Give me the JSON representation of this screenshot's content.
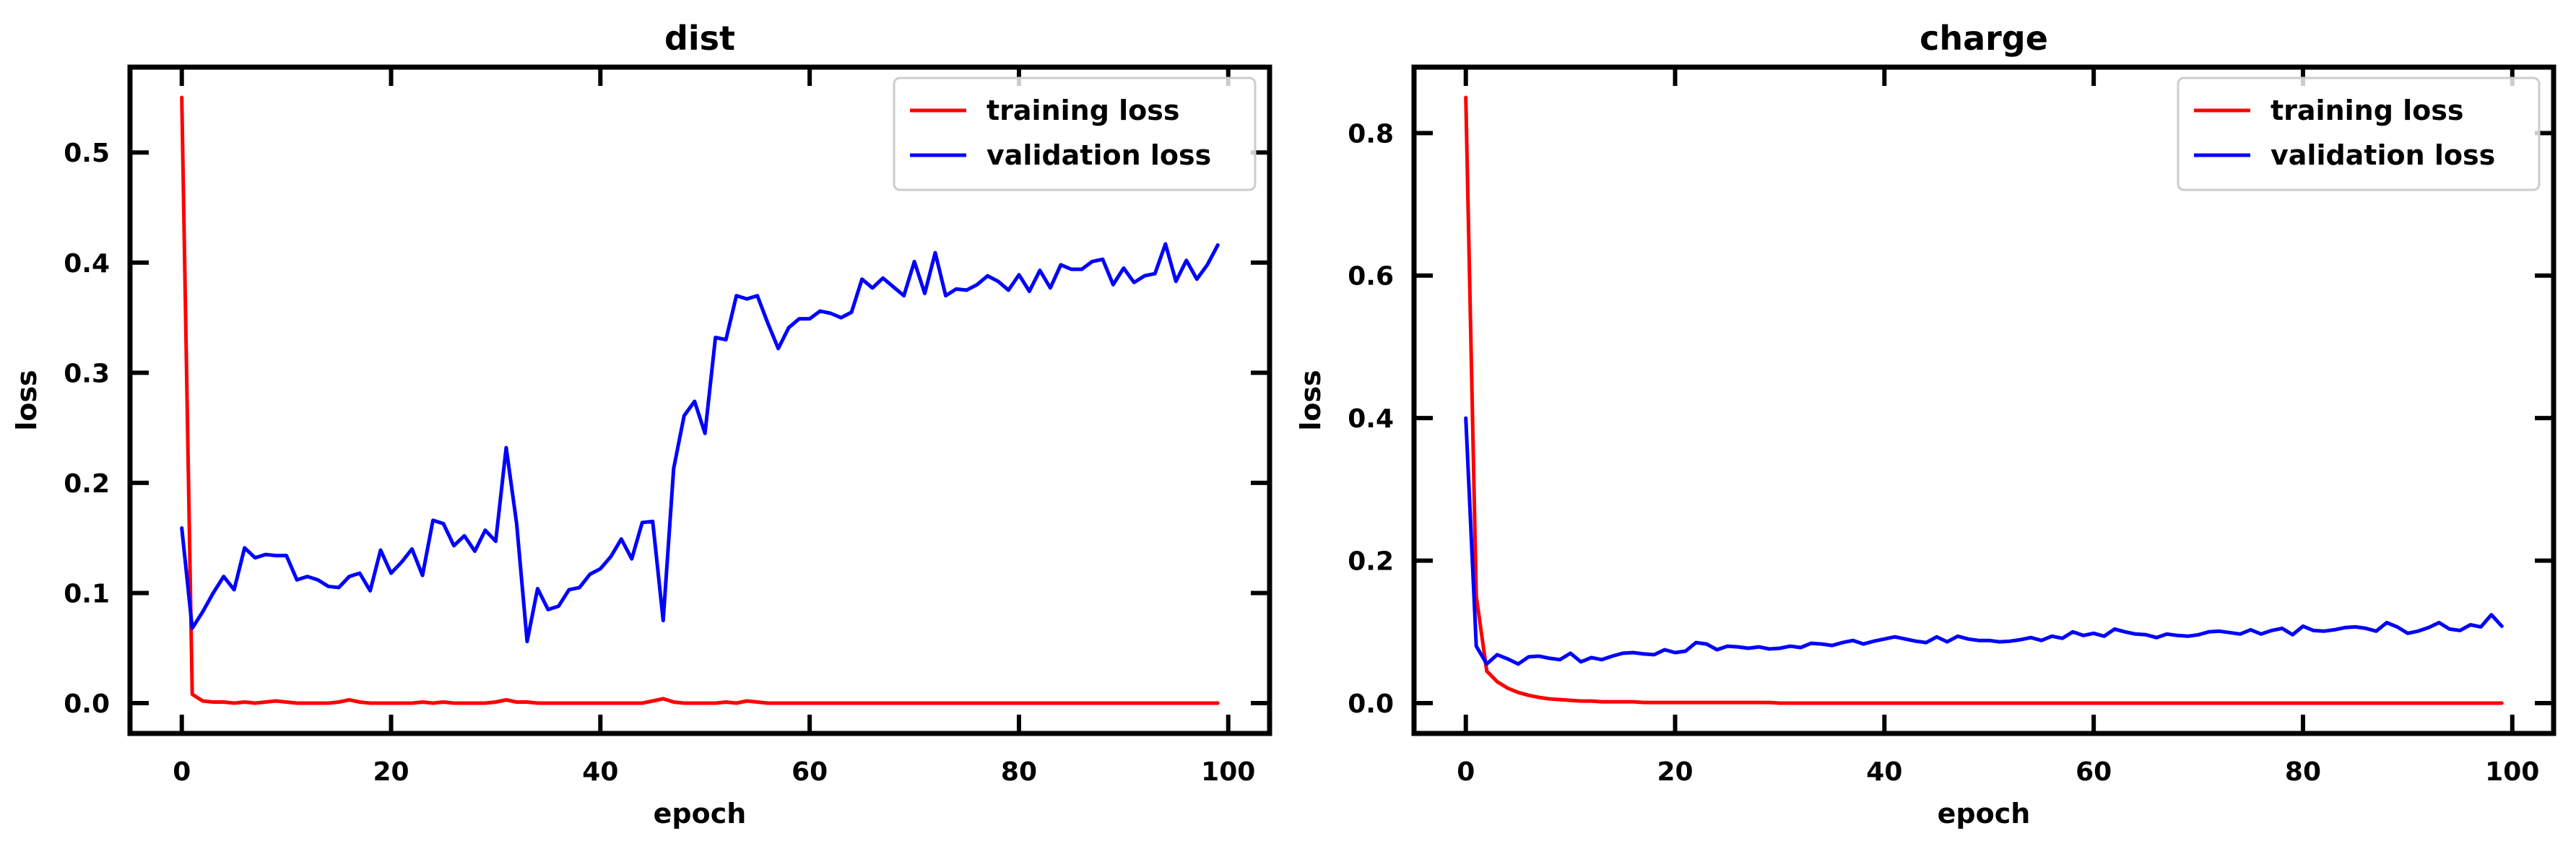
{
  "chart_data": [
    {
      "type": "line",
      "title": "dist",
      "xlabel": "epoch",
      "ylabel": "loss",
      "xlim": [
        -4.95,
        103.95
      ],
      "ylim": [
        -0.0275,
        0.5775
      ],
      "xticks": [
        0,
        20,
        40,
        60,
        80,
        100
      ],
      "xtick_labels": [
        "0",
        "20",
        "40",
        "60",
        "80",
        "100"
      ],
      "yticks": [
        0.0,
        0.1,
        0.2,
        0.3,
        0.4,
        0.5
      ],
      "ytick_labels": [
        "0.0",
        "0.1",
        "0.2",
        "0.3",
        "0.4",
        "0.5"
      ],
      "legend_position": "top-right",
      "x": "range:0-99",
      "series": [
        {
          "name": "training loss",
          "color": "#ff0000",
          "values": [
            0.55,
            0.008,
            0.002,
            0.001,
            0.001,
            0.0,
            0.001,
            0.0,
            0.001,
            0.002,
            0.001,
            0.0,
            0.0,
            0.0,
            0.0,
            0.001,
            0.003,
            0.001,
            0.0,
            0.0,
            0.0,
            0.0,
            0.0,
            0.001,
            0.0,
            0.001,
            0.0,
            0.0,
            0.0,
            0.0,
            0.001,
            0.003,
            0.001,
            0.001,
            0.0,
            0.0,
            0.0,
            0.0,
            0.0,
            0.0,
            0.0,
            0.0,
            0.0,
            0.0,
            0.0,
            0.002,
            0.004,
            0.001,
            0.0,
            0.0,
            0.0,
            0.0,
            0.001,
            0.0,
            0.002,
            0.001,
            0.0,
            0.0,
            0.0,
            0.0,
            0.0,
            0.0,
            0.0,
            0.0,
            0.0,
            0.0,
            0.0,
            0.0,
            0.0,
            0.0,
            0.0,
            0.0,
            0.0,
            0.0,
            0.0,
            0.0,
            0.0,
            0.0,
            0.0,
            0.0,
            0.0,
            0.0,
            0.0,
            0.0,
            0.0,
            0.0,
            0.0,
            0.0,
            0.0,
            0.0,
            0.0,
            0.0,
            0.0,
            0.0,
            0.0,
            0.0,
            0.0,
            0.0,
            0.0,
            0.0
          ]
        },
        {
          "name": "validation loss",
          "color": "#0000ff",
          "values": [
            0.159,
            0.068,
            0.083,
            0.1,
            0.115,
            0.103,
            0.141,
            0.132,
            0.135,
            0.134,
            0.134,
            0.112,
            0.115,
            0.112,
            0.106,
            0.105,
            0.115,
            0.118,
            0.102,
            0.139,
            0.118,
            0.128,
            0.14,
            0.116,
            0.166,
            0.163,
            0.143,
            0.152,
            0.138,
            0.157,
            0.147,
            0.232,
            0.163,
            0.056,
            0.104,
            0.085,
            0.088,
            0.103,
            0.105,
            0.117,
            0.122,
            0.133,
            0.149,
            0.131,
            0.164,
            0.165,
            0.075,
            0.213,
            0.261,
            0.274,
            0.245,
            0.332,
            0.33,
            0.37,
            0.367,
            0.37,
            0.345,
            0.322,
            0.341,
            0.349,
            0.349,
            0.356,
            0.354,
            0.35,
            0.355,
            0.385,
            0.377,
            0.386,
            0.378,
            0.37,
            0.401,
            0.372,
            0.409,
            0.37,
            0.376,
            0.375,
            0.38,
            0.388,
            0.383,
            0.375,
            0.389,
            0.374,
            0.393,
            0.377,
            0.398,
            0.394,
            0.394,
            0.401,
            0.403,
            0.38,
            0.395,
            0.382,
            0.388,
            0.39,
            0.417,
            0.383,
            0.402,
            0.385,
            0.398,
            0.416
          ]
        }
      ]
    },
    {
      "type": "line",
      "title": "charge",
      "xlabel": "epoch",
      "ylabel": "loss",
      "xlim": [
        -4.95,
        103.95
      ],
      "ylim": [
        -0.0425,
        0.8925
      ],
      "xticks": [
        0,
        20,
        40,
        60,
        80,
        100
      ],
      "xtick_labels": [
        "0",
        "20",
        "40",
        "60",
        "80",
        "100"
      ],
      "yticks": [
        0.0,
        0.2,
        0.4,
        0.6,
        0.8
      ],
      "ytick_labels": [
        "0.0",
        "0.2",
        "0.4",
        "0.6",
        "0.8"
      ],
      "legend_position": "top-right",
      "x": "range:0-99",
      "series": [
        {
          "name": "training loss",
          "color": "#ff0000",
          "values": [
            0.85,
            0.15,
            0.045,
            0.03,
            0.021,
            0.015,
            0.011,
            0.008,
            0.006,
            0.005,
            0.004,
            0.003,
            0.003,
            0.002,
            0.002,
            0.002,
            0.002,
            0.001,
            0.001,
            0.001,
            0.001,
            0.001,
            0.001,
            0.001,
            0.001,
            0.001,
            0.001,
            0.001,
            0.001,
            0.001,
            0.0,
            0.0,
            0.0,
            0.0,
            0.0,
            0.0,
            0.0,
            0.0,
            0.0,
            0.0,
            0.0,
            0.0,
            0.0,
            0.0,
            0.0,
            0.0,
            0.0,
            0.0,
            0.0,
            0.0,
            0.0,
            0.0,
            0.0,
            0.0,
            0.0,
            0.0,
            0.0,
            0.0,
            0.0,
            0.0,
            0.0,
            0.0,
            0.0,
            0.0,
            0.0,
            0.0,
            0.0,
            0.0,
            0.0,
            0.0,
            0.0,
            0.0,
            0.0,
            0.0,
            0.0,
            0.0,
            0.0,
            0.0,
            0.0,
            0.0,
            0.0,
            0.0,
            0.0,
            0.0,
            0.0,
            0.0,
            0.0,
            0.0,
            0.0,
            0.0,
            0.0,
            0.0,
            0.0,
            0.0,
            0.0,
            0.0,
            0.0,
            0.0,
            0.0,
            0.0
          ]
        },
        {
          "name": "validation loss",
          "color": "#0000ff",
          "values": [
            0.4,
            0.08,
            0.055,
            0.068,
            0.062,
            0.055,
            0.065,
            0.066,
            0.063,
            0.061,
            0.07,
            0.058,
            0.064,
            0.061,
            0.066,
            0.07,
            0.071,
            0.069,
            0.068,
            0.075,
            0.071,
            0.073,
            0.085,
            0.083,
            0.075,
            0.08,
            0.079,
            0.077,
            0.079,
            0.076,
            0.077,
            0.08,
            0.078,
            0.084,
            0.083,
            0.081,
            0.085,
            0.088,
            0.083,
            0.087,
            0.09,
            0.093,
            0.09,
            0.087,
            0.085,
            0.093,
            0.086,
            0.094,
            0.09,
            0.088,
            0.088,
            0.086,
            0.087,
            0.089,
            0.092,
            0.088,
            0.094,
            0.091,
            0.1,
            0.095,
            0.098,
            0.094,
            0.104,
            0.1,
            0.097,
            0.096,
            0.092,
            0.097,
            0.095,
            0.094,
            0.096,
            0.1,
            0.101,
            0.099,
            0.097,
            0.103,
            0.097,
            0.102,
            0.105,
            0.096,
            0.108,
            0.102,
            0.101,
            0.103,
            0.106,
            0.107,
            0.105,
            0.101,
            0.113,
            0.107,
            0.098,
            0.101,
            0.106,
            0.113,
            0.104,
            0.102,
            0.11,
            0.107,
            0.124,
            0.108
          ]
        }
      ]
    }
  ]
}
